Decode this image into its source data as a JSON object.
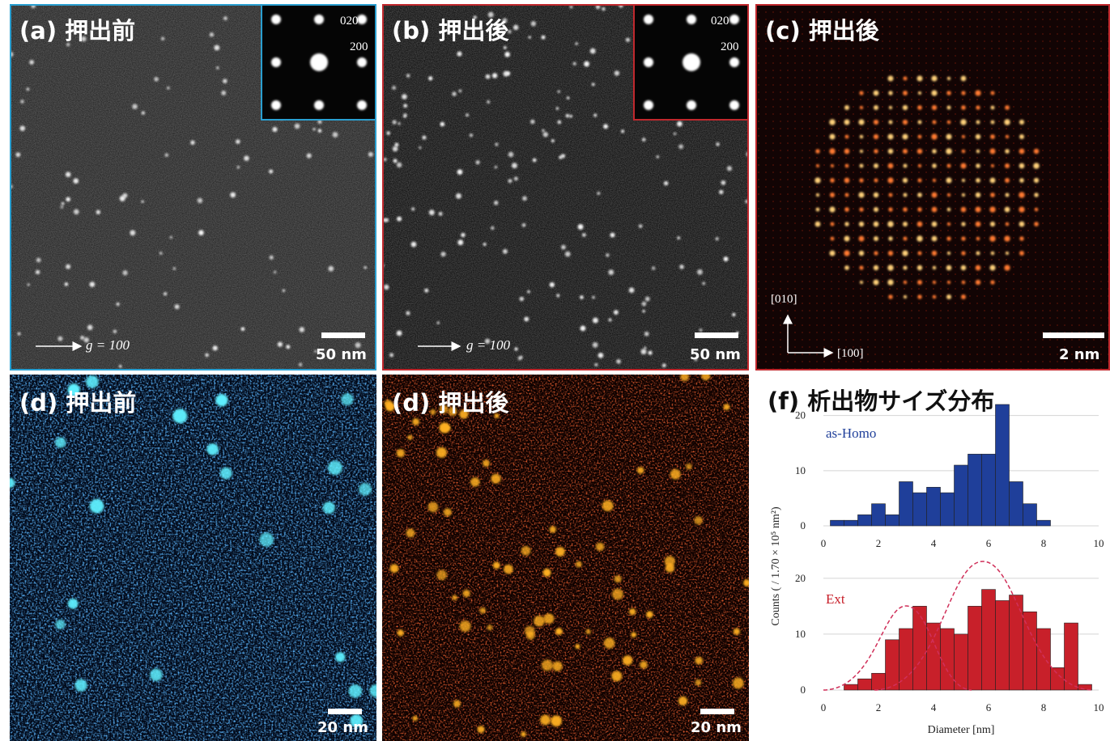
{
  "panels": [
    {
      "label": "(a) 押出前",
      "inset_labels": [
        "020",
        "200"
      ],
      "vector": "g = 100",
      "scale_bar": "50 nm"
    },
    {
      "label": "(b) 押出後",
      "inset_labels": [
        "020",
        "200"
      ],
      "vector": "g = 100",
      "scale_bar": "50 nm"
    },
    {
      "label": "(c) 押出後",
      "axes": [
        "[010]",
        "[100]"
      ],
      "scale_bar": "2 nm"
    },
    {
      "label": "(d) 押出前",
      "scale_bar": "20 nm"
    },
    {
      "label": "(d) 押出後",
      "scale_bar": "20 nm"
    }
  ],
  "chart_data": [
    {
      "type": "histogram",
      "title": "(f) 析出物サイズ分布",
      "ylabel": "Counts ( / 1.70 × 10⁵ nm²)",
      "bins": [
        0.25,
        0.75,
        1.25,
        1.75,
        2.25,
        2.75,
        3.25,
        3.75,
        4.25,
        4.75,
        5.25,
        5.75,
        6.25,
        6.75,
        7.25,
        7.75,
        8.25
      ],
      "series": [
        {
          "name": "as-Homo",
          "color": "#1f3f9a",
          "values": [
            1,
            1,
            2,
            4,
            2,
            8,
            6,
            7,
            6,
            11,
            13,
            13,
            22,
            8,
            4,
            1
          ]
        }
      ],
      "xlim": [
        0,
        10
      ],
      "xticks": [
        0,
        2,
        4,
        6,
        8,
        10
      ],
      "ylim": [
        0,
        22
      ],
      "yticks": [
        0,
        10,
        20
      ],
      "grid": true
    },
    {
      "type": "histogram",
      "xlabel": "Diameter [nm]",
      "bins": [
        0.25,
        0.75,
        1.25,
        1.75,
        2.25,
        2.75,
        3.25,
        3.75,
        4.25,
        4.75,
        5.25,
        5.75,
        6.25,
        6.75,
        7.25,
        7.75,
        8.25,
        8.75,
        9.25,
        9.75
      ],
      "series": [
        {
          "name": "Ext",
          "color": "#c8202a",
          "values": [
            0,
            1,
            2,
            3,
            9,
            11,
            15,
            12,
            11,
            10,
            15,
            18,
            16,
            17,
            14,
            11,
            4,
            12,
            1
          ]
        }
      ],
      "xlim": [
        0,
        10
      ],
      "xticks": [
        0,
        2,
        4,
        6,
        8,
        10
      ],
      "ylim": [
        0,
        22
      ],
      "yticks": [
        0,
        10,
        20
      ],
      "grid": true
    }
  ]
}
